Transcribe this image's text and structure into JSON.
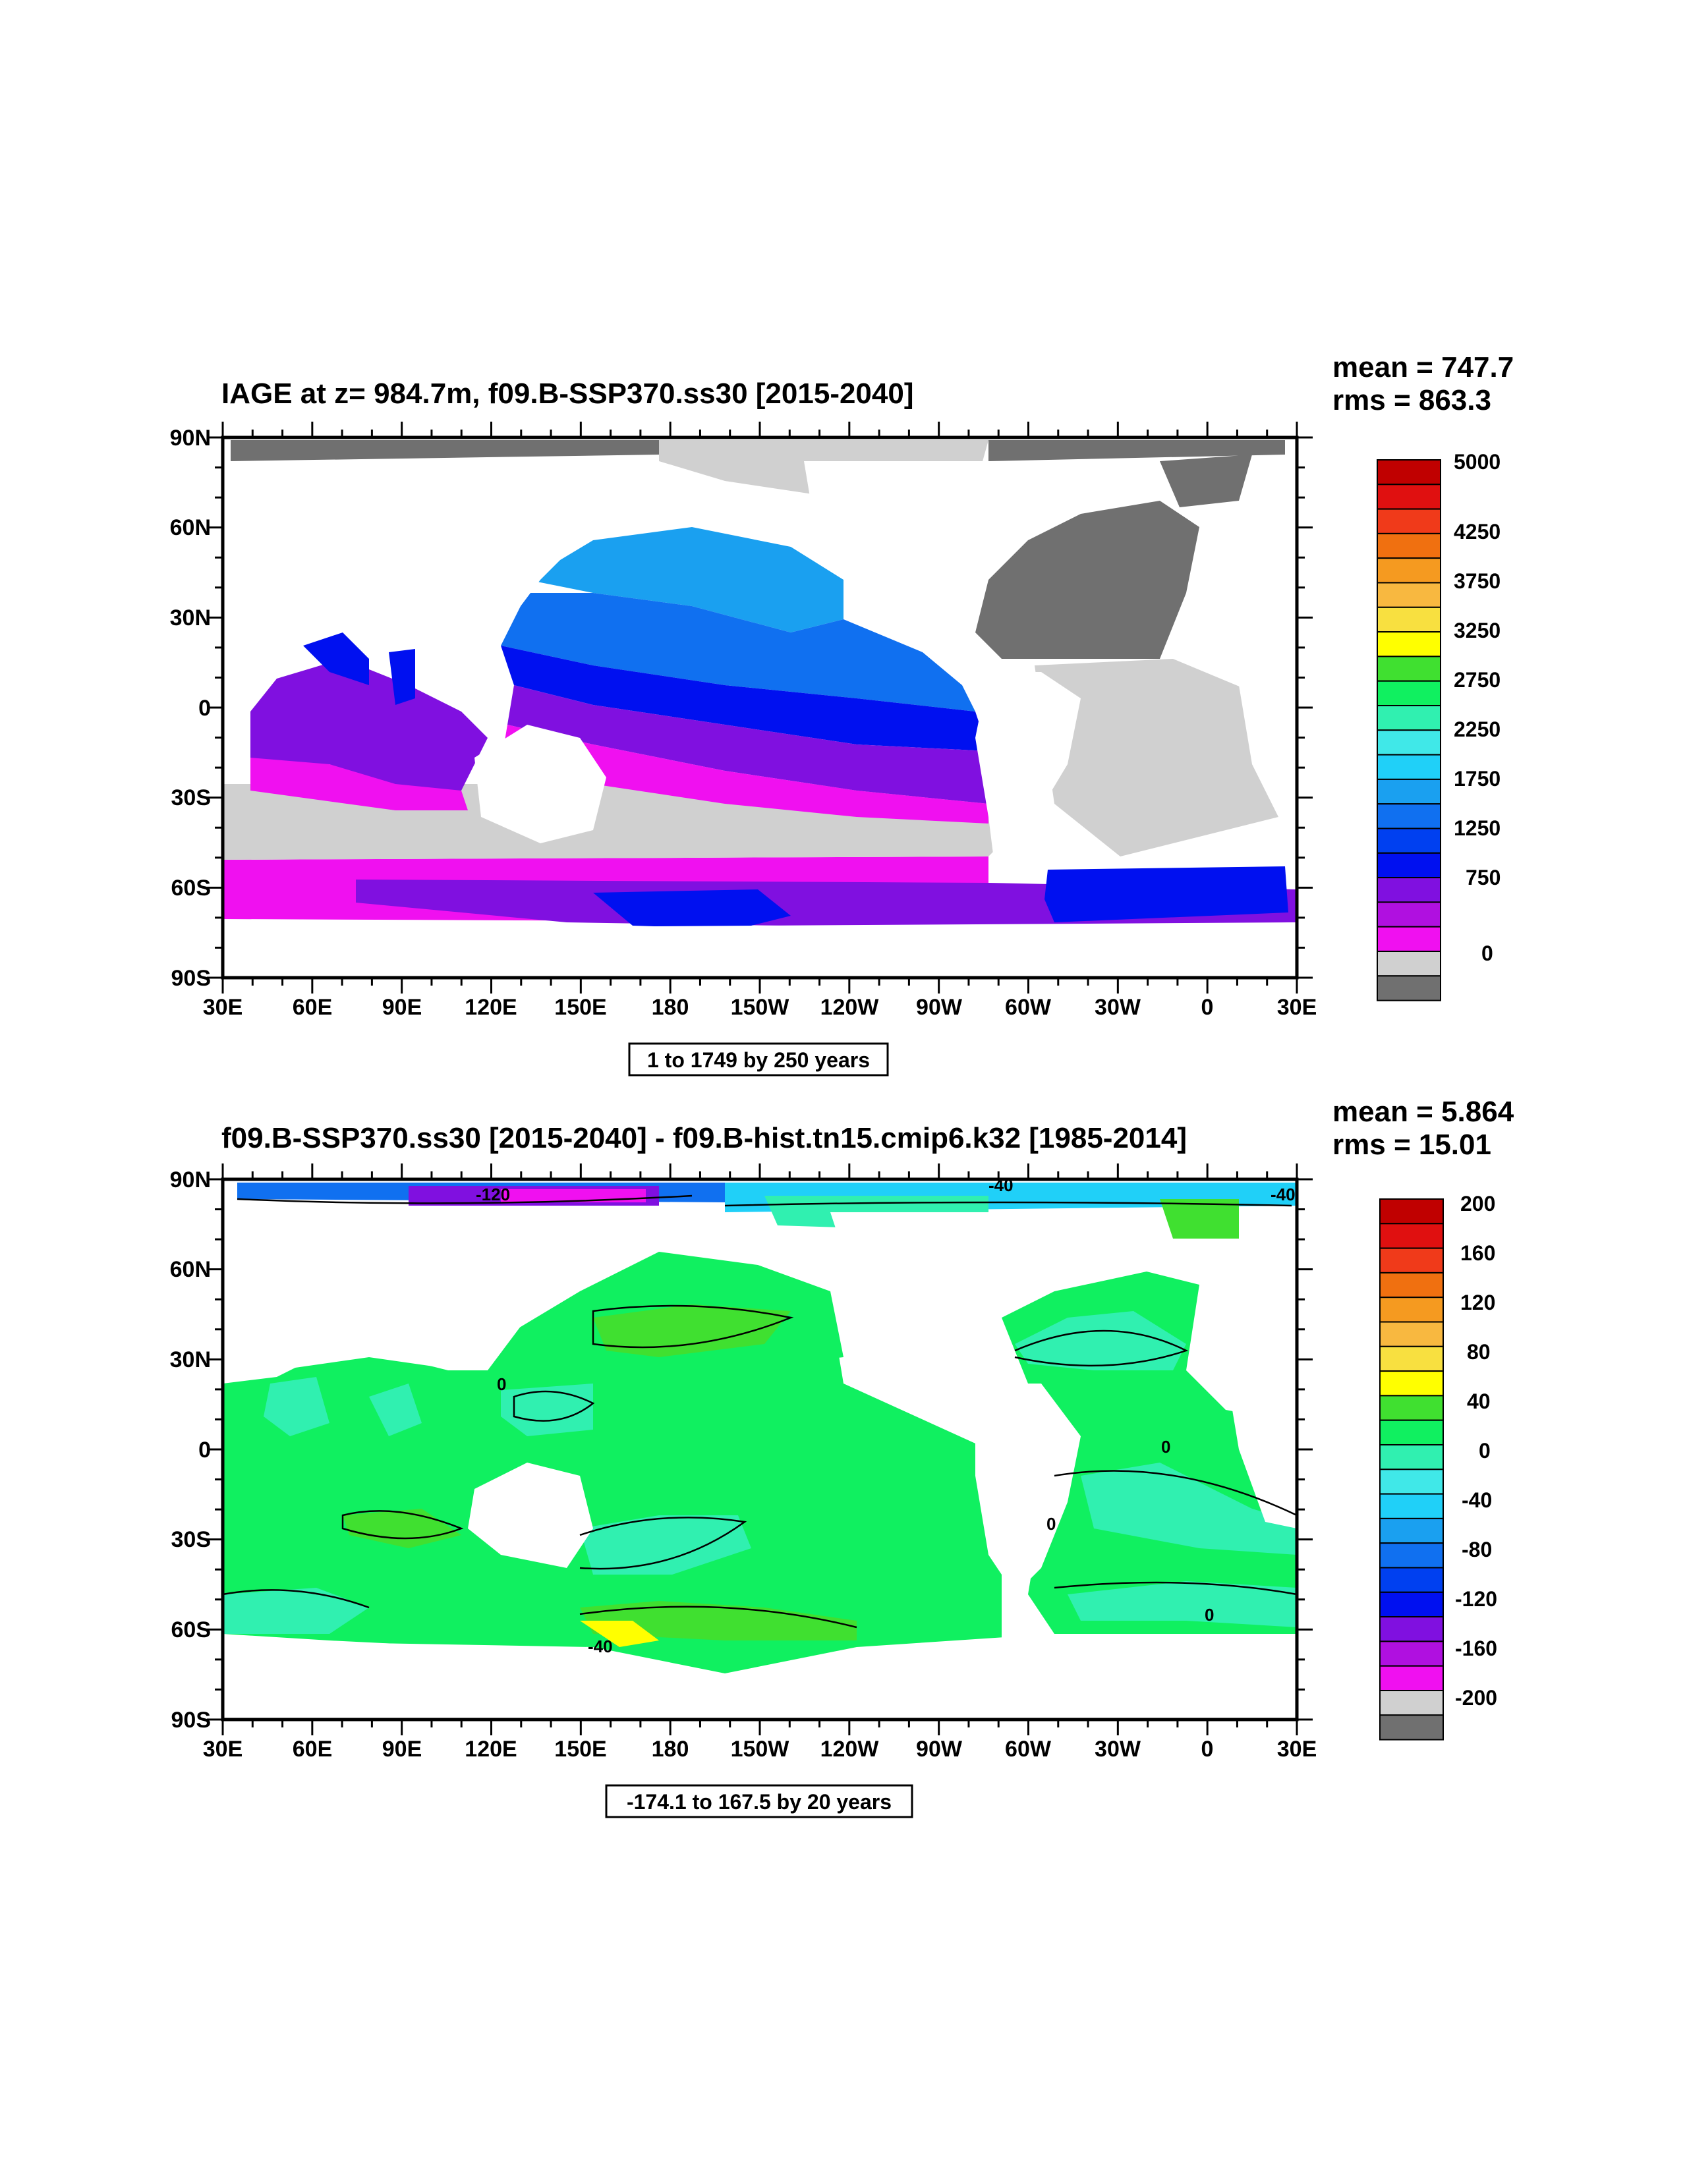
{
  "panels": [
    {
      "title": "IAGE at z= 984.7m, f09.B-SSP370.ss30 [2015-2040]",
      "mean_text": "mean = 747.7",
      "rms_text": "rms = 863.3",
      "contour_info": "1 to 1749 by 250 years",
      "lat_labels": [
        "90N",
        "60N",
        "30N",
        "0",
        "30S",
        "60S",
        "90S"
      ],
      "lon_labels": [
        "30E",
        "60E",
        "90E",
        "120E",
        "150E",
        "180",
        "150W",
        "120W",
        "90W",
        "60W",
        "30W",
        "0",
        "30E"
      ],
      "colorbar": {
        "labels": [
          "5000",
          "4250",
          "3750",
          "3250",
          "2750",
          "2250",
          "1750",
          "1250",
          "750",
          "0"
        ],
        "colors_top_to_bottom": [
          "#c00000",
          "#e01010",
          "#f03a1a",
          "#f07010",
          "#f59a20",
          "#f8b840",
          "#f8e040",
          "#ffff00",
          "#40e030",
          "#10f060",
          "#30f0b0",
          "#40e8e8",
          "#20d0f8",
          "#1aa0f0",
          "#1070f0",
          "#0040f0",
          "#0010f0",
          "#8010e0",
          "#b010e0",
          "#f010f0",
          "#d0d0d0",
          "#707070"
        ]
      },
      "contour_labels": []
    },
    {
      "title": "f09.B-SSP370.ss30 [2015-2040] - f09.B-hist.tn15.cmip6.k32 [1985-2014]",
      "mean_text": "mean = 5.864",
      "rms_text": "rms = 15.01",
      "contour_info": "-174.1 to 167.5 by 20 years",
      "lat_labels": [
        "90N",
        "60N",
        "30N",
        "0",
        "30S",
        "60S",
        "90S"
      ],
      "lon_labels": [
        "30E",
        "60E",
        "90E",
        "120E",
        "150E",
        "180",
        "150W",
        "120W",
        "90W",
        "60W",
        "30W",
        "0",
        "30E"
      ],
      "colorbar": {
        "labels": [
          "200",
          "160",
          "120",
          "80",
          "40",
          "0",
          "-40",
          "-80",
          "-120",
          "-160",
          "-200"
        ],
        "colors_top_to_bottom": [
          "#c00000",
          "#e01010",
          "#f03a1a",
          "#f07010",
          "#f59a20",
          "#f8b840",
          "#f8e040",
          "#ffff00",
          "#40e030",
          "#10f060",
          "#30f0b0",
          "#40e8e8",
          "#20d0f8",
          "#1aa0f0",
          "#1070f0",
          "#0040f0",
          "#0010f0",
          "#8010e0",
          "#b010e0",
          "#f010f0",
          "#d0d0d0",
          "#707070"
        ]
      },
      "contour_labels": [
        "-120",
        "-40",
        "-40",
        "0",
        "0",
        "0",
        "0",
        "-40"
      ]
    }
  ],
  "chart_data": [
    {
      "type": "heatmap",
      "title": "IAGE at z= 984.7m, f09.B-SSP370.ss30 [2015-2040]",
      "variable": "IAGE",
      "depth": "984.7m",
      "mean": 747.7,
      "rms": 863.3,
      "contour_min": 1,
      "contour_max": 1749,
      "contour_interval": 250,
      "units": "years",
      "x_ticks": [
        "30E",
        "60E",
        "90E",
        "120E",
        "150E",
        "180",
        "150W",
        "120W",
        "90W",
        "60W",
        "30W",
        "0",
        "30E"
      ],
      "y_ticks": [
        "90N",
        "60N",
        "30N",
        "0",
        "30S",
        "60S",
        "90S"
      ],
      "xlim": [
        30,
        390
      ],
      "ylim": [
        -90,
        90
      ],
      "colorbar_labels": [
        5000,
        4250,
        3750,
        3250,
        2750,
        2250,
        1750,
        1250,
        750,
        0
      ]
    },
    {
      "type": "heatmap",
      "title": "f09.B-SSP370.ss30 [2015-2040] - f09.B-hist.tn15.cmip6.k32 [1985-2014]",
      "mean": 5.864,
      "rms": 15.01,
      "contour_min": -174.1,
      "contour_max": 167.5,
      "contour_interval": 20,
      "units": "years",
      "x_ticks": [
        "30E",
        "60E",
        "90E",
        "120E",
        "150E",
        "180",
        "150W",
        "120W",
        "90W",
        "60W",
        "30W",
        "0",
        "30E"
      ],
      "y_ticks": [
        "90N",
        "60N",
        "30N",
        "0",
        "30S",
        "60S",
        "90S"
      ],
      "xlim": [
        30,
        390
      ],
      "ylim": [
        -90,
        90
      ],
      "colorbar_labels": [
        200,
        160,
        120,
        80,
        40,
        0,
        -40,
        -80,
        -120,
        -160,
        -200
      ]
    }
  ]
}
